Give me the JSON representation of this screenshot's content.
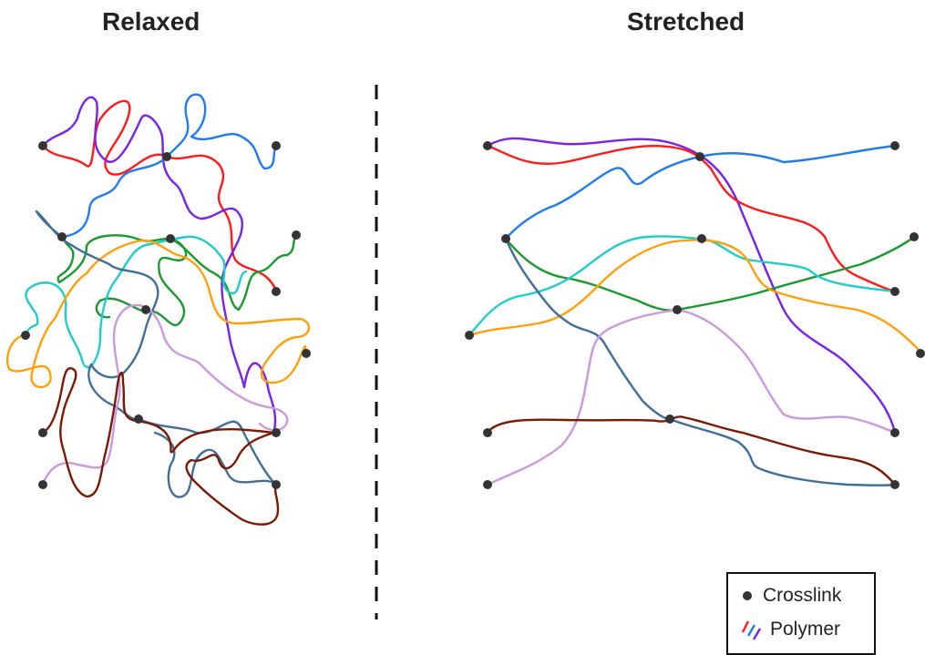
{
  "panels": {
    "left_title": "Relaxed",
    "right_title": "Stretched"
  },
  "legend": {
    "crosslink_label": "Crosslink",
    "polymer_label": "Polymer"
  },
  "colors": {
    "crosslink": "#333333",
    "divider": "#111111",
    "red": "#ff1a1a",
    "blue": "#1e7cf0",
    "purple": "#7a22e6",
    "green": "#1a9a2e",
    "cyan": "#20cccc",
    "orange": "#ffa00a",
    "steel": "#3f6f96",
    "lilac": "#cc99dd",
    "brown": "#7a1a05"
  },
  "icons": {
    "crosslink": "filled-circle-icon",
    "polymer": "polymer-strands-icon"
  }
}
